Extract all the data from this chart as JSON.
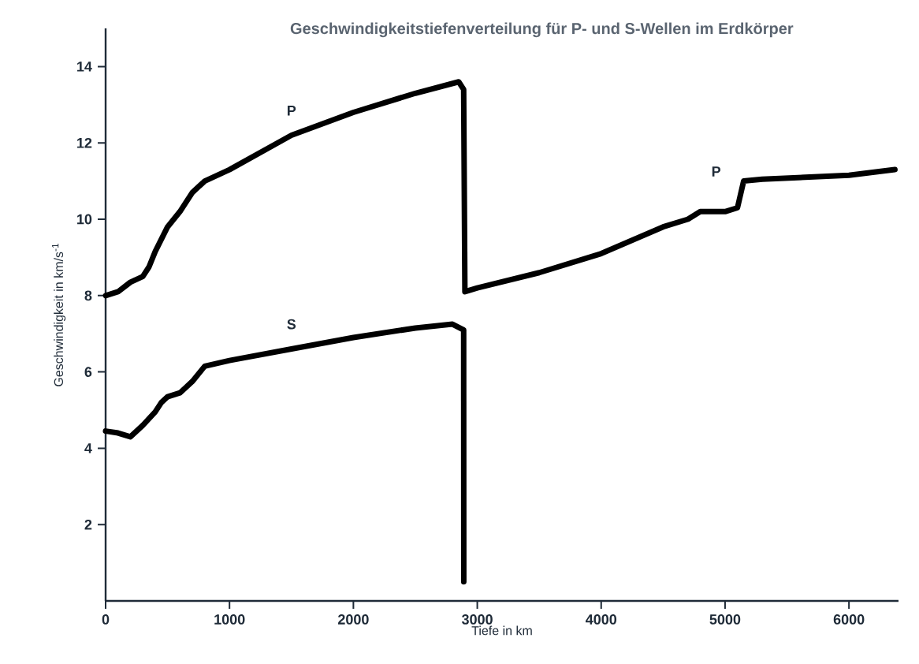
{
  "chart_data": {
    "type": "line",
    "title": "Geschwindigkeitstiefenverteilung für P- und S-Wellen im Erdkörper",
    "xlabel": "Tiefe in km",
    "ylabel": "Geschwindigkeit in km/s$^{-1}$",
    "xlim": [
      0,
      6400
    ],
    "ylim": [
      0,
      15
    ],
    "xticks": [
      0,
      1000,
      2000,
      3000,
      4000,
      5000,
      6000
    ],
    "yticks": [
      2,
      4,
      6,
      8,
      10,
      12,
      14
    ],
    "grid": false,
    "marker": "none",
    "line_style": "solid",
    "series": [
      {
        "name": "P",
        "color": "#000000",
        "x": [
          0,
          100,
          200,
          300,
          350,
          400,
          500,
          600,
          700,
          800,
          1000,
          1500,
          2000,
          2500,
          2850,
          2890,
          2900,
          3000,
          3500,
          4000,
          4500,
          4700,
          4800,
          5000,
          5100,
          5150,
          5300,
          6000,
          6371
        ],
        "values": [
          8.0,
          8.1,
          8.35,
          8.5,
          8.75,
          9.15,
          9.8,
          10.2,
          10.7,
          11.0,
          11.3,
          12.2,
          12.8,
          13.3,
          13.6,
          13.4,
          8.1,
          8.2,
          8.6,
          9.1,
          9.8,
          10.0,
          10.2,
          10.2,
          10.3,
          11.0,
          11.05,
          11.15,
          11.3
        ]
      },
      {
        "name": "S",
        "color": "#000000",
        "x": [
          0,
          100,
          200,
          300,
          400,
          450,
          500,
          600,
          700,
          800,
          1000,
          1500,
          2000,
          2500,
          2800,
          2890,
          2891
        ],
        "values": [
          4.45,
          4.4,
          4.3,
          4.6,
          4.95,
          5.2,
          5.35,
          5.45,
          5.75,
          6.15,
          6.3,
          6.6,
          6.9,
          7.15,
          7.25,
          7.1,
          0.5
        ]
      }
    ],
    "annotations": [
      "P"
    ]
  }
}
